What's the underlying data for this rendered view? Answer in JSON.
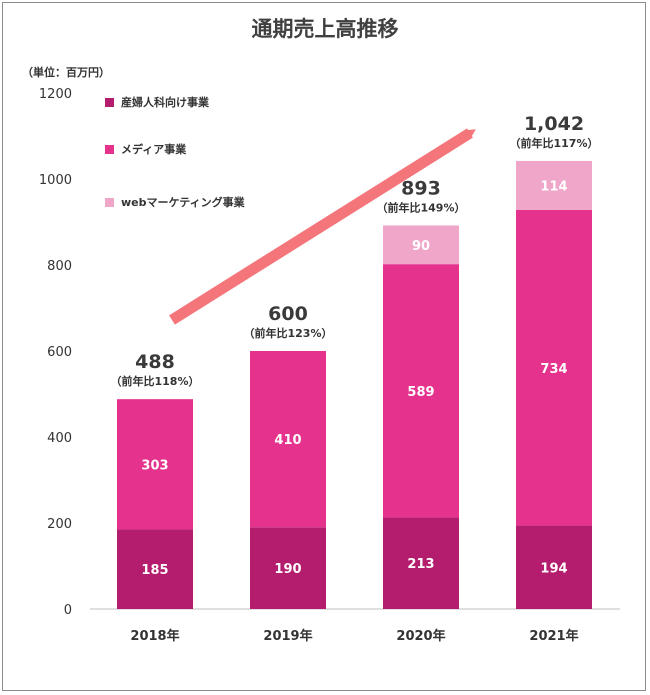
{
  "chart_data": {
    "type": "bar",
    "stacked": true,
    "title": "通期売上高推移",
    "unit_label": "（単位：百万円）",
    "categories": [
      "2018年",
      "2019年",
      "2020年",
      "2021年"
    ],
    "ylim": [
      0,
      1200
    ],
    "yticks": [
      0,
      200,
      400,
      600,
      800,
      1000,
      1200
    ],
    "series": [
      {
        "name": "産婦人科向け事業",
        "color": "#b41d6e",
        "values": [
          185,
          190,
          213,
          194
        ]
      },
      {
        "name": "メディア事業",
        "color": "#e5338d",
        "values": [
          303,
          410,
          589,
          734
        ]
      },
      {
        "name": "webマーケティング事業",
        "color": "#f0a6c8",
        "values": [
          null,
          null,
          90,
          114
        ]
      }
    ],
    "totals": [
      "488",
      "600",
      "893",
      "1,042"
    ],
    "growth": [
      "（前年比118%）",
      "（前年比123%）",
      "（前年比149%）",
      "（前年比117%）"
    ],
    "legend_position": "top-left",
    "grid": false,
    "arrow_color": "#f4767b"
  }
}
